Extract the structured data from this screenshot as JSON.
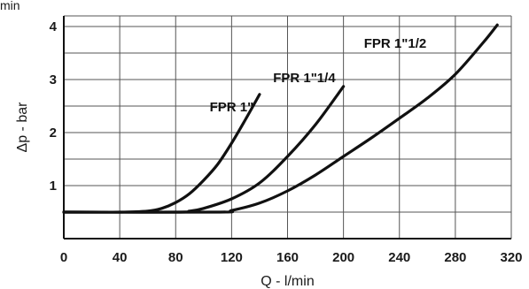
{
  "corner_text": "min",
  "chart_data": {
    "type": "line",
    "xlabel": "Q - l/min",
    "ylabel": "Δp - bar",
    "xlim": [
      0,
      320
    ],
    "ylim": [
      0,
      4.2
    ],
    "grid": true,
    "x_ticks": [
      0,
      40,
      80,
      120,
      160,
      200,
      240,
      280,
      320
    ],
    "y_ticks": [
      1,
      2,
      3,
      4
    ],
    "colors": {
      "grid": "#555555",
      "curve": "#111111",
      "axis": "#111111"
    },
    "series": [
      {
        "name": "FPR 1\"",
        "x": [
          0,
          40,
          60,
          70,
          80,
          90,
          100,
          110,
          120,
          130,
          140
        ],
        "y": [
          0.5,
          0.5,
          0.52,
          0.57,
          0.68,
          0.85,
          1.1,
          1.4,
          1.8,
          2.25,
          2.72
        ]
      },
      {
        "name": "FPR 1\"1/4",
        "x": [
          0,
          80,
          90,
          100,
          120,
          140,
          160,
          180,
          200
        ],
        "y": [
          0.5,
          0.5,
          0.52,
          0.57,
          0.75,
          1.05,
          1.55,
          2.15,
          2.87
        ]
      },
      {
        "name": "FPR 1\"1/2",
        "x": [
          0,
          110,
          120,
          140,
          160,
          180,
          200,
          220,
          240,
          260,
          280,
          300,
          310
        ],
        "y": [
          0.5,
          0.5,
          0.53,
          0.67,
          0.9,
          1.2,
          1.55,
          1.9,
          2.27,
          2.65,
          3.1,
          3.7,
          4.03
        ]
      }
    ],
    "series_label_anchor": [
      {
        "x": 120,
        "y": 2.4
      },
      {
        "x": 172,
        "y": 2.95
      },
      {
        "x": 237,
        "y": 3.6
      }
    ]
  }
}
